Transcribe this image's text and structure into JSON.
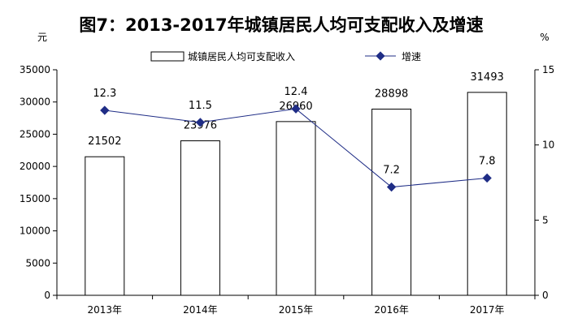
{
  "chart_data": {
    "type": "bar+line",
    "title": "图7：2013-2017年城镇居民人均可支配收入及增速",
    "categories": [
      "2013年",
      "2014年",
      "2015年",
      "2016年",
      "2017年"
    ],
    "series": [
      {
        "name": "城镇居民人均可支配收入",
        "type": "bar",
        "axis": "left",
        "values": [
          21502,
          23976,
          26960,
          28898,
          31493
        ]
      },
      {
        "name": "增速",
        "type": "line",
        "axis": "right",
        "values": [
          12.3,
          11.5,
          12.4,
          7.2,
          7.8
        ],
        "color": "#1F2D86"
      }
    ],
    "y_left": {
      "unit": "元",
      "range": [
        0,
        35000
      ],
      "ticks": [
        "0",
        "5000",
        "10000",
        "15000",
        "20000",
        "25000",
        "30000",
        "35000"
      ]
    },
    "y_right": {
      "unit": "%",
      "range": [
        0,
        15
      ],
      "ticks": [
        "0",
        "5",
        "10",
        "15"
      ]
    },
    "legend_placement": "top",
    "grid": false
  }
}
